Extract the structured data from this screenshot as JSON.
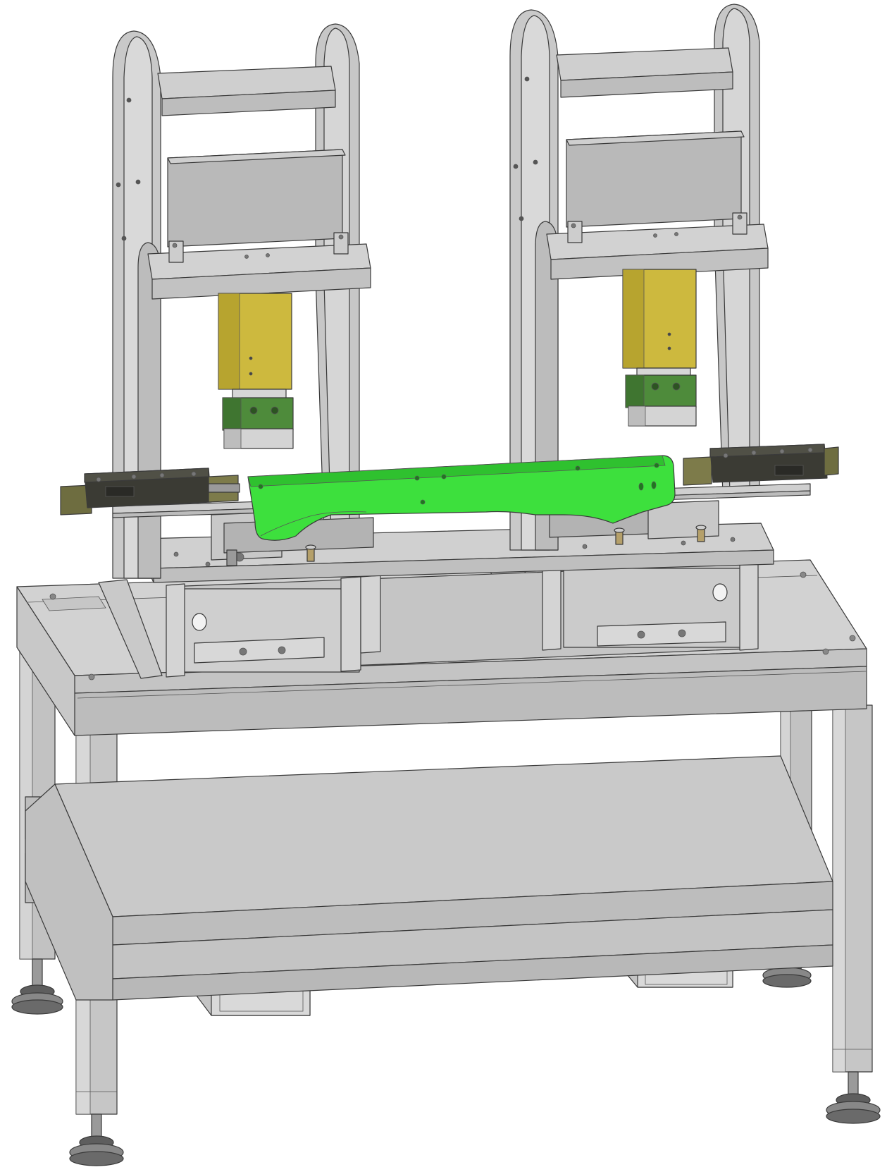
{
  "colors": {
    "background": "#ffffff",
    "frame": "#c8c8c8",
    "frame_light": "#d6d6d6",
    "frame_dark": "#a9a9a9",
    "panel": "#bdbdbd",
    "cylinder_yellow": "#c9b43a",
    "cylinder_yellow_dark": "#a8952a",
    "clamp_green": "#4f8a3c",
    "part_green": "#3be23b",
    "part_green_dark": "#2fbf2f",
    "slide_dark": "#3a3a32",
    "slide_olive": "#6b6b3a",
    "outline": "#3a3a3a"
  },
  "components": {
    "left_press_arch": "left-press-arch",
    "right_press_arch": "right-press-arch",
    "left_cylinder": "left-cylinder",
    "right_cylinder": "right-cylinder",
    "workpiece": "green-workpiece",
    "left_slide": "left-linear-slide",
    "right_slide": "right-linear-slide",
    "table_top": "table-top",
    "lower_shelf": "lower-shelf",
    "leveling_feet": "leveling-feet"
  }
}
